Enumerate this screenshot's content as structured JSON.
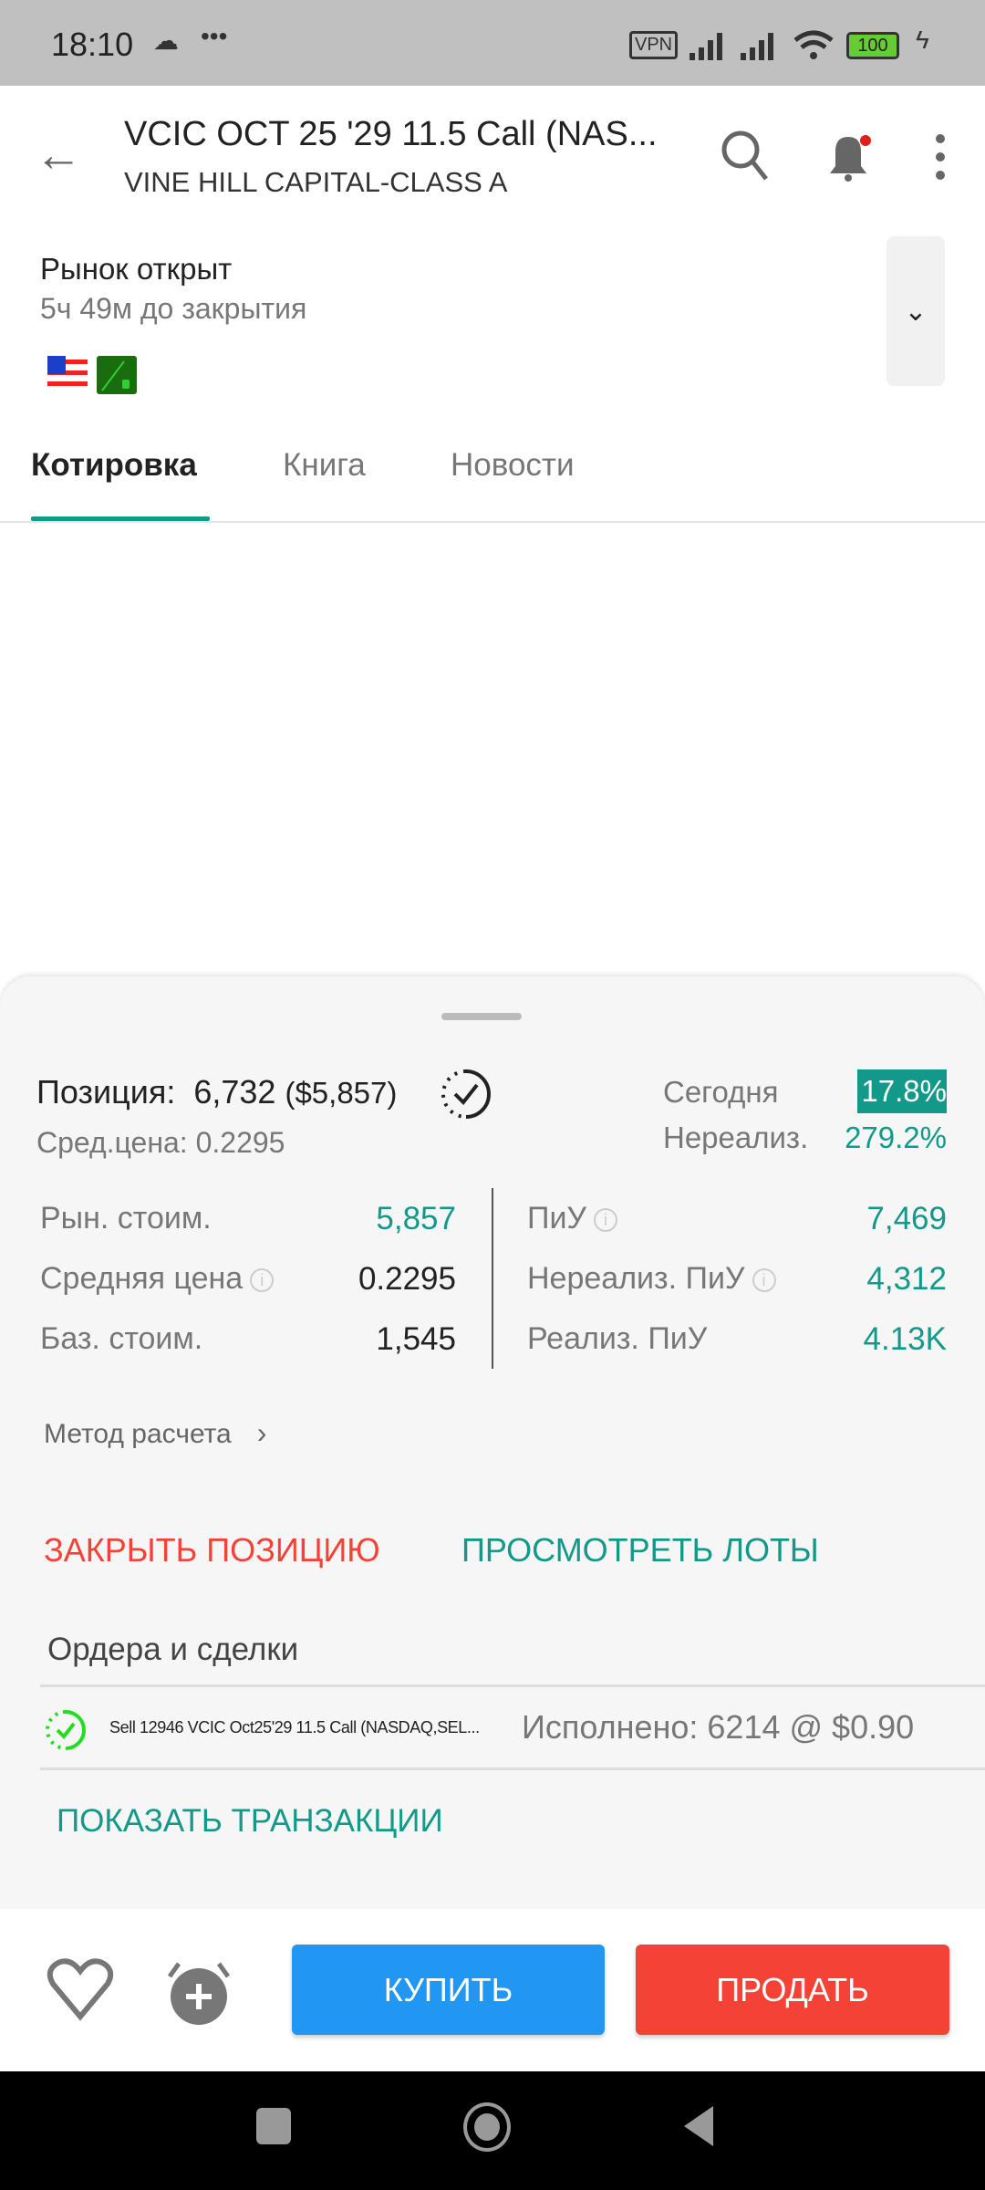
{
  "status_bar": {
    "time": "18:10",
    "battery": "100",
    "vpn": "VPN",
    "icons": [
      "cloud-icon",
      "more-dots-icon",
      "vpn-icon",
      "signal-icon",
      "signal-icon",
      "wifi-icon",
      "battery-icon",
      "charging-icon"
    ]
  },
  "header": {
    "title": "VCIC OCT 25 '29 11.5 Call (NAS...",
    "subtitle": "VINE HILL CAPITAL-CLASS A"
  },
  "market": {
    "status": "Рынок открыт",
    "time_to_close": "5ч 49м до закрытия"
  },
  "tabs": [
    {
      "label": "Котировка",
      "active": true
    },
    {
      "label": "Книга"
    },
    {
      "label": "Новости"
    }
  ],
  "position": {
    "label": "Позиция:",
    "qty": "6,732",
    "value": "($5,857)",
    "avg_price": "Сред.цена: 0.2295",
    "today_label": "Сегодня",
    "today_value": "17.8%",
    "unreal_label": "Нереализ.",
    "unreal_value": "279.2%"
  },
  "stats_left": [
    {
      "label": "Рын. стоим.",
      "value": "5,857"
    },
    {
      "label": "Средняя цена",
      "value": "0.2295"
    },
    {
      "label": "Баз. стоим.",
      "value": "1,545"
    }
  ],
  "stats_right": [
    {
      "label": "ПиУ",
      "value": "7,469"
    },
    {
      "label": "Нереализ. ПиУ",
      "value": "4,312"
    },
    {
      "label": "Реализ. ПиУ",
      "value": "4.13K"
    }
  ],
  "calc_method": "Метод расчета",
  "actions": {
    "close": "ЗАКРЫТЬ ПОЗИЦИЮ",
    "lots": "ПРОСМОТРЕТЬ ЛОТЫ"
  },
  "orders": {
    "title": "Ордера и сделки",
    "items": [
      {
        "desc": "Sell 12946 VCIC Oct25'29 11.5 Call (NASDAQ,SEL...",
        "status": "Исполнено: 6214 @ $0.90"
      }
    ],
    "show_tx": "ПОКАЗАТЬ ТРАНЗАКЦИИ"
  },
  "bottom": {
    "buy": "КУПИТЬ",
    "sell": "ПРОДАТЬ"
  },
  "colors": {
    "teal": "#12998a",
    "buy": "#2196f3",
    "sell": "#f44336",
    "close": "#f44336"
  }
}
